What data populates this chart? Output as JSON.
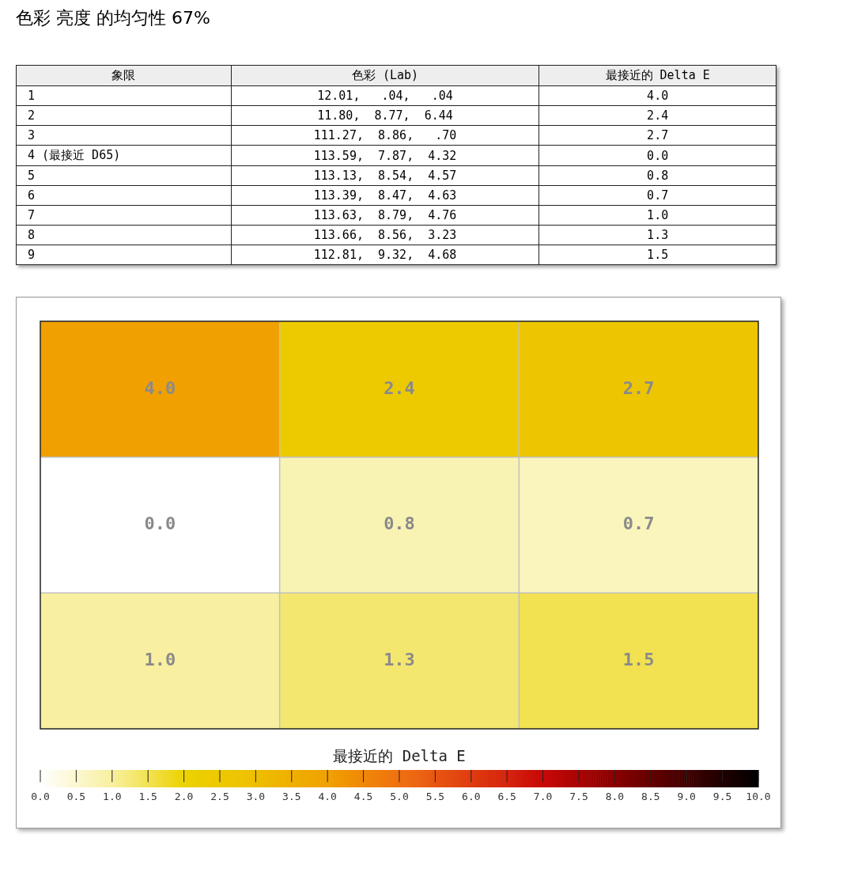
{
  "chart_data": [
    {
      "type": "other",
      "title": "色彩 亮度 的均匀性 67%",
      "categories": [
        "象限",
        "色彩 (Lab)",
        "最接近的 Delta E"
      ],
      "cell_labels": [
        [
          "1",
          "12.01,   .04,   .04",
          "4.0"
        ],
        [
          "2",
          "11.80,  8.77,  6.44",
          "2.4"
        ],
        [
          "3",
          "111.27,  8.86,   .70",
          "2.7"
        ],
        [
          "4 (最接近 D65)",
          "113.59,  7.87,  4.32",
          "0.0"
        ],
        [
          "5",
          "113.13,  8.54,  4.57",
          "0.8"
        ],
        [
          "6",
          "113.39,  8.47,  4.63",
          "0.7"
        ],
        [
          "7",
          "113.63,  8.79,  4.76",
          "1.0"
        ],
        [
          "8",
          "113.66,  8.56,  3.23",
          "1.3"
        ],
        [
          "9",
          "112.81,  9.32,  4.68",
          "1.5"
        ]
      ]
    },
    {
      "type": "heatmap",
      "categories": [
        null,
        null,
        null
      ],
      "y_categories": [
        null,
        null,
        null
      ],
      "cells": [
        [
          4.0,
          2.4,
          2.7
        ],
        [
          0.0,
          0.8,
          0.7
        ],
        [
          1.0,
          1.3,
          1.5
        ]
      ],
      "cell_labels": [
        [
          "4.0",
          "2.4",
          "2.7"
        ],
        [
          "0.0",
          "0.8",
          "0.7"
        ],
        [
          "1.0",
          "1.3",
          "1.5"
        ]
      ],
      "clabel": "最接近的 Delta E",
      "clim": [
        0,
        10
      ],
      "grid": true,
      "cticks": [
        {
          "value": 0,
          "label": "0.0"
        },
        {
          "value": 0.5,
          "label": "0.5"
        },
        {
          "value": 1,
          "label": "1.0"
        },
        {
          "value": 1.5,
          "label": "1.5"
        },
        {
          "value": 2,
          "label": "2.0"
        },
        {
          "value": 2.5,
          "label": "2.5"
        },
        {
          "value": 3,
          "label": "3.0"
        },
        {
          "value": 3.5,
          "label": "3.5"
        },
        {
          "value": 4,
          "label": "4.0"
        },
        {
          "value": 4.5,
          "label": "4.5"
        },
        {
          "value": 5,
          "label": "5.0"
        },
        {
          "value": 5.5,
          "label": "5.5"
        },
        {
          "value": 6,
          "label": "6.0"
        },
        {
          "value": 6.5,
          "label": "6.5"
        },
        {
          "value": 7,
          "label": "7.0"
        },
        {
          "value": 7.5,
          "label": "7.5"
        },
        {
          "value": 8,
          "label": "8.0"
        },
        {
          "value": 8.5,
          "label": "8.5"
        },
        {
          "value": 9,
          "label": "9.0"
        },
        {
          "value": 9.5,
          "label": "9.5"
        },
        {
          "value": 10,
          "label": "10.0"
        }
      ]
    }
  ]
}
